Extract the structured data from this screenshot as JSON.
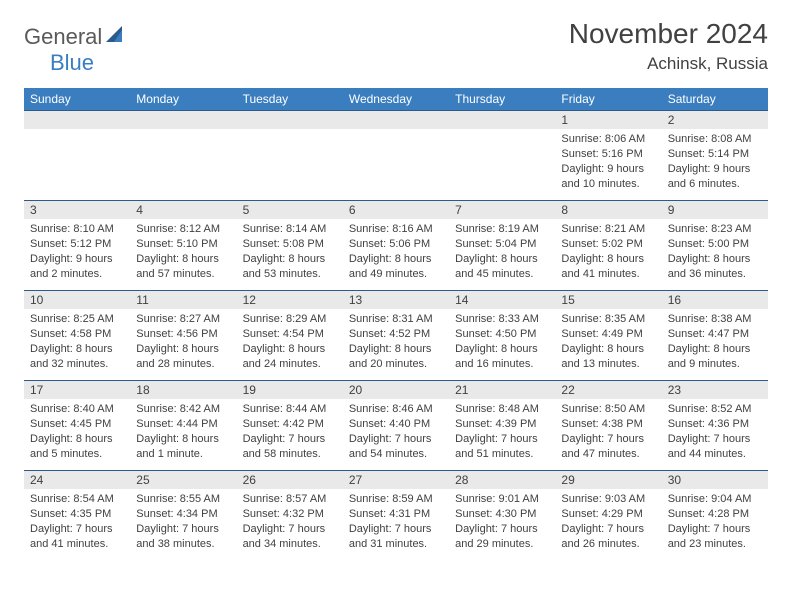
{
  "brand": {
    "part1": "General",
    "part2": "Blue"
  },
  "title": "November 2024",
  "location": "Achinsk, Russia",
  "colors": {
    "header_bg": "#3b7ec0",
    "header_text": "#ffffff",
    "daynum_bg": "#e9e9e9",
    "border": "#2a5b8c",
    "text": "#414141",
    "logo_gray": "#5a5a5a",
    "logo_blue": "#3b7ec0"
  },
  "weekdays": [
    "Sunday",
    "Monday",
    "Tuesday",
    "Wednesday",
    "Thursday",
    "Friday",
    "Saturday"
  ],
  "weeks": [
    [
      {
        "empty": true
      },
      {
        "empty": true
      },
      {
        "empty": true
      },
      {
        "empty": true
      },
      {
        "empty": true
      },
      {
        "n": "1",
        "sunrise": "Sunrise: 8:06 AM",
        "sunset": "Sunset: 5:16 PM",
        "day1": "Daylight: 9 hours",
        "day2": "and 10 minutes."
      },
      {
        "n": "2",
        "sunrise": "Sunrise: 8:08 AM",
        "sunset": "Sunset: 5:14 PM",
        "day1": "Daylight: 9 hours",
        "day2": "and 6 minutes."
      }
    ],
    [
      {
        "n": "3",
        "sunrise": "Sunrise: 8:10 AM",
        "sunset": "Sunset: 5:12 PM",
        "day1": "Daylight: 9 hours",
        "day2": "and 2 minutes."
      },
      {
        "n": "4",
        "sunrise": "Sunrise: 8:12 AM",
        "sunset": "Sunset: 5:10 PM",
        "day1": "Daylight: 8 hours",
        "day2": "and 57 minutes."
      },
      {
        "n": "5",
        "sunrise": "Sunrise: 8:14 AM",
        "sunset": "Sunset: 5:08 PM",
        "day1": "Daylight: 8 hours",
        "day2": "and 53 minutes."
      },
      {
        "n": "6",
        "sunrise": "Sunrise: 8:16 AM",
        "sunset": "Sunset: 5:06 PM",
        "day1": "Daylight: 8 hours",
        "day2": "and 49 minutes."
      },
      {
        "n": "7",
        "sunrise": "Sunrise: 8:19 AM",
        "sunset": "Sunset: 5:04 PM",
        "day1": "Daylight: 8 hours",
        "day2": "and 45 minutes."
      },
      {
        "n": "8",
        "sunrise": "Sunrise: 8:21 AM",
        "sunset": "Sunset: 5:02 PM",
        "day1": "Daylight: 8 hours",
        "day2": "and 41 minutes."
      },
      {
        "n": "9",
        "sunrise": "Sunrise: 8:23 AM",
        "sunset": "Sunset: 5:00 PM",
        "day1": "Daylight: 8 hours",
        "day2": "and 36 minutes."
      }
    ],
    [
      {
        "n": "10",
        "sunrise": "Sunrise: 8:25 AM",
        "sunset": "Sunset: 4:58 PM",
        "day1": "Daylight: 8 hours",
        "day2": "and 32 minutes."
      },
      {
        "n": "11",
        "sunrise": "Sunrise: 8:27 AM",
        "sunset": "Sunset: 4:56 PM",
        "day1": "Daylight: 8 hours",
        "day2": "and 28 minutes."
      },
      {
        "n": "12",
        "sunrise": "Sunrise: 8:29 AM",
        "sunset": "Sunset: 4:54 PM",
        "day1": "Daylight: 8 hours",
        "day2": "and 24 minutes."
      },
      {
        "n": "13",
        "sunrise": "Sunrise: 8:31 AM",
        "sunset": "Sunset: 4:52 PM",
        "day1": "Daylight: 8 hours",
        "day2": "and 20 minutes."
      },
      {
        "n": "14",
        "sunrise": "Sunrise: 8:33 AM",
        "sunset": "Sunset: 4:50 PM",
        "day1": "Daylight: 8 hours",
        "day2": "and 16 minutes."
      },
      {
        "n": "15",
        "sunrise": "Sunrise: 8:35 AM",
        "sunset": "Sunset: 4:49 PM",
        "day1": "Daylight: 8 hours",
        "day2": "and 13 minutes."
      },
      {
        "n": "16",
        "sunrise": "Sunrise: 8:38 AM",
        "sunset": "Sunset: 4:47 PM",
        "day1": "Daylight: 8 hours",
        "day2": "and 9 minutes."
      }
    ],
    [
      {
        "n": "17",
        "sunrise": "Sunrise: 8:40 AM",
        "sunset": "Sunset: 4:45 PM",
        "day1": "Daylight: 8 hours",
        "day2": "and 5 minutes."
      },
      {
        "n": "18",
        "sunrise": "Sunrise: 8:42 AM",
        "sunset": "Sunset: 4:44 PM",
        "day1": "Daylight: 8 hours",
        "day2": "and 1 minute."
      },
      {
        "n": "19",
        "sunrise": "Sunrise: 8:44 AM",
        "sunset": "Sunset: 4:42 PM",
        "day1": "Daylight: 7 hours",
        "day2": "and 58 minutes."
      },
      {
        "n": "20",
        "sunrise": "Sunrise: 8:46 AM",
        "sunset": "Sunset: 4:40 PM",
        "day1": "Daylight: 7 hours",
        "day2": "and 54 minutes."
      },
      {
        "n": "21",
        "sunrise": "Sunrise: 8:48 AM",
        "sunset": "Sunset: 4:39 PM",
        "day1": "Daylight: 7 hours",
        "day2": "and 51 minutes."
      },
      {
        "n": "22",
        "sunrise": "Sunrise: 8:50 AM",
        "sunset": "Sunset: 4:38 PM",
        "day1": "Daylight: 7 hours",
        "day2": "and 47 minutes."
      },
      {
        "n": "23",
        "sunrise": "Sunrise: 8:52 AM",
        "sunset": "Sunset: 4:36 PM",
        "day1": "Daylight: 7 hours",
        "day2": "and 44 minutes."
      }
    ],
    [
      {
        "n": "24",
        "sunrise": "Sunrise: 8:54 AM",
        "sunset": "Sunset: 4:35 PM",
        "day1": "Daylight: 7 hours",
        "day2": "and 41 minutes."
      },
      {
        "n": "25",
        "sunrise": "Sunrise: 8:55 AM",
        "sunset": "Sunset: 4:34 PM",
        "day1": "Daylight: 7 hours",
        "day2": "and 38 minutes."
      },
      {
        "n": "26",
        "sunrise": "Sunrise: 8:57 AM",
        "sunset": "Sunset: 4:32 PM",
        "day1": "Daylight: 7 hours",
        "day2": "and 34 minutes."
      },
      {
        "n": "27",
        "sunrise": "Sunrise: 8:59 AM",
        "sunset": "Sunset: 4:31 PM",
        "day1": "Daylight: 7 hours",
        "day2": "and 31 minutes."
      },
      {
        "n": "28",
        "sunrise": "Sunrise: 9:01 AM",
        "sunset": "Sunset: 4:30 PM",
        "day1": "Daylight: 7 hours",
        "day2": "and 29 minutes."
      },
      {
        "n": "29",
        "sunrise": "Sunrise: 9:03 AM",
        "sunset": "Sunset: 4:29 PM",
        "day1": "Daylight: 7 hours",
        "day2": "and 26 minutes."
      },
      {
        "n": "30",
        "sunrise": "Sunrise: 9:04 AM",
        "sunset": "Sunset: 4:28 PM",
        "day1": "Daylight: 7 hours",
        "day2": "and 23 minutes."
      }
    ]
  ]
}
